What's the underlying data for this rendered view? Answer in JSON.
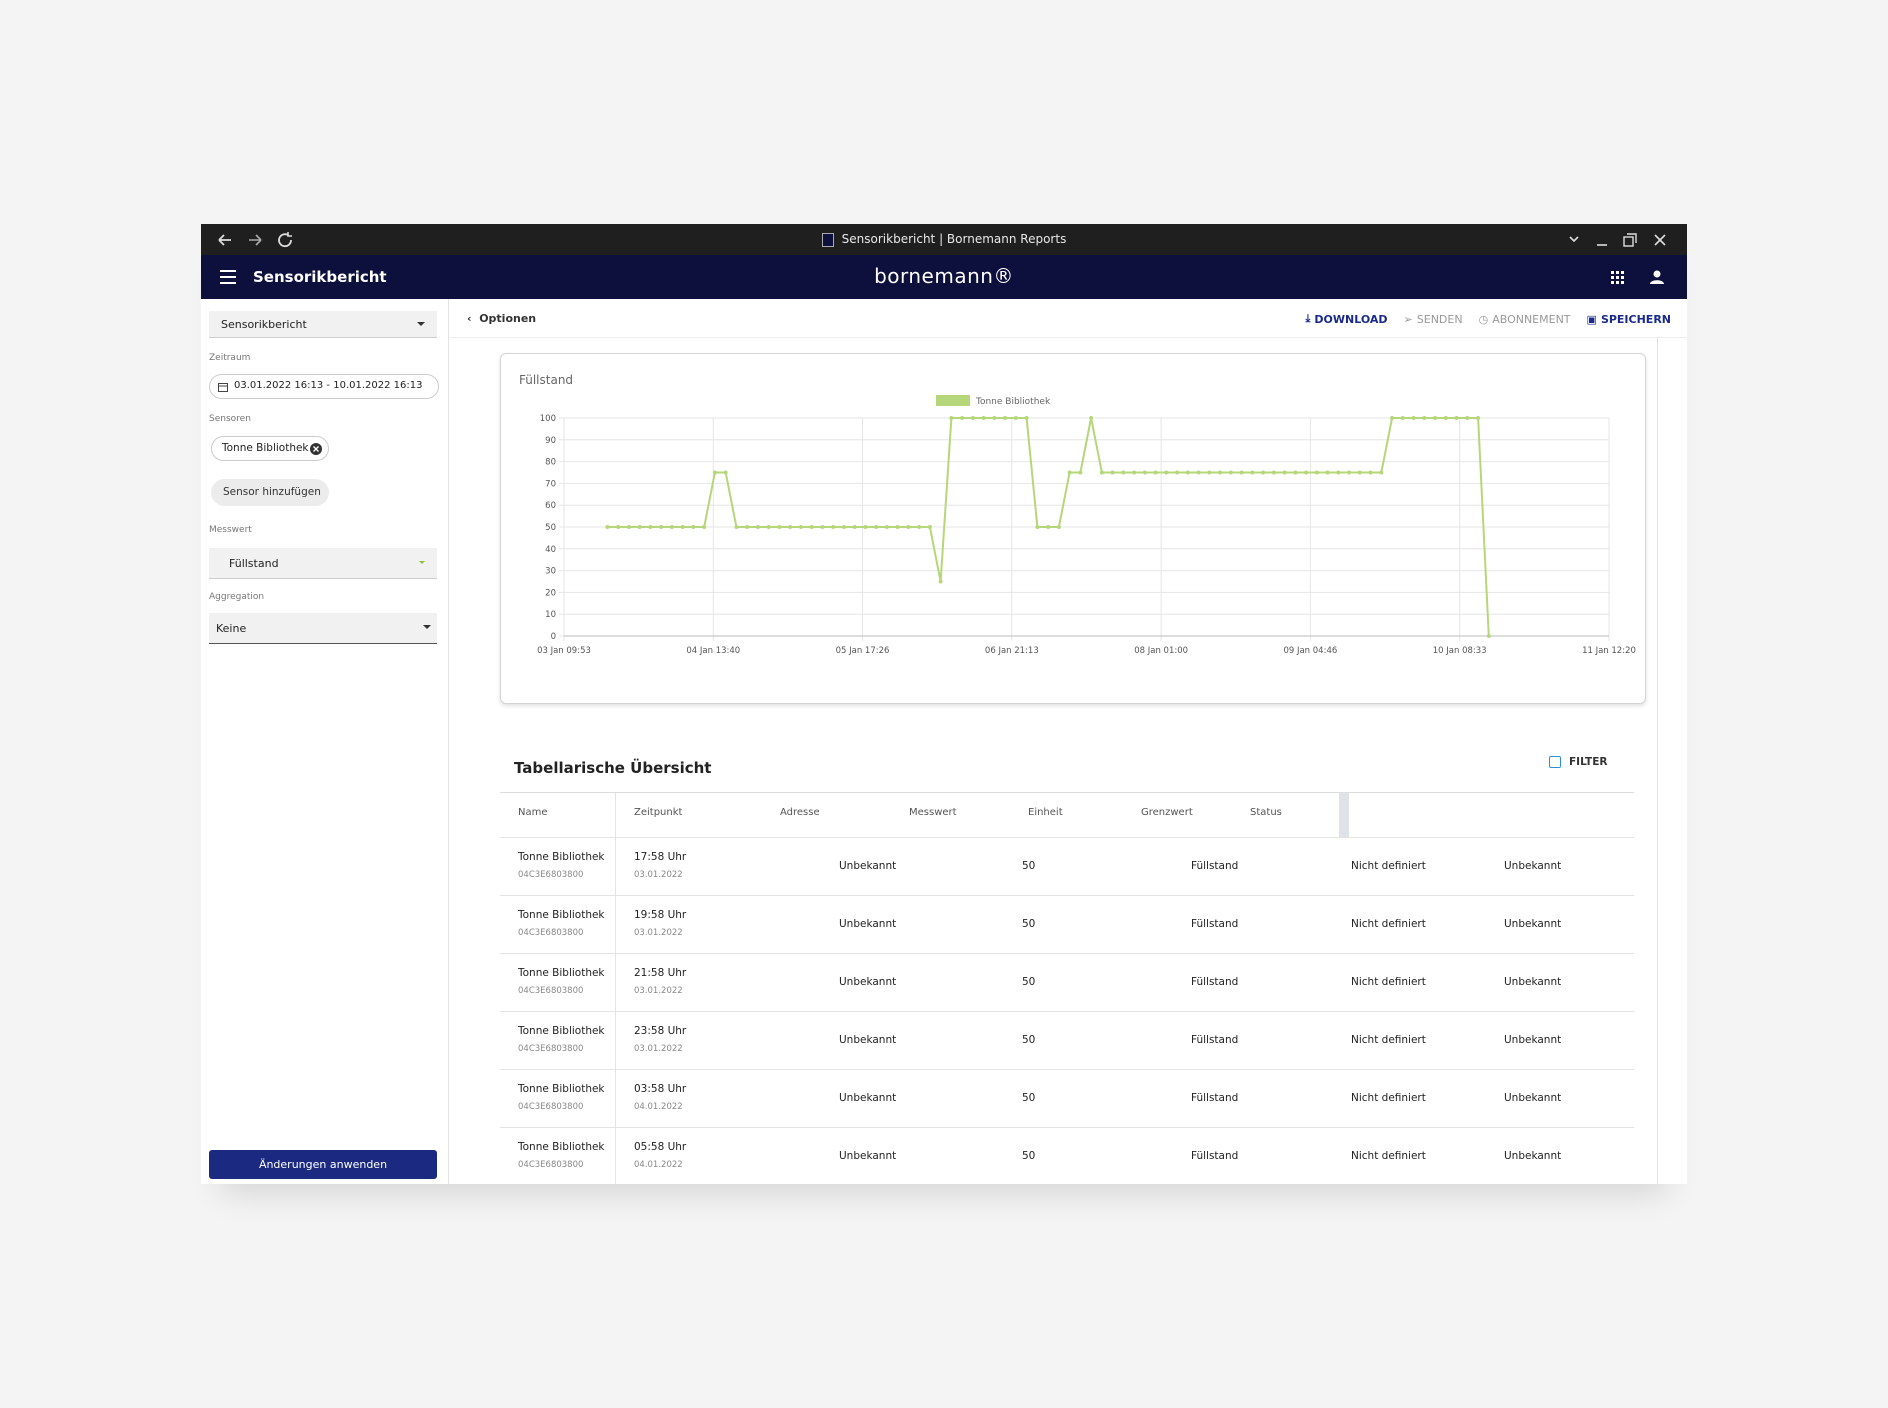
{
  "browser": {
    "tab_title": "Sensorikbericht | Bornemann Reports"
  },
  "app": {
    "title": "Sensorikbericht",
    "brand": "bornemann®"
  },
  "sidebar": {
    "report_select": "Sensorikbericht",
    "period_label": "Zeitraum",
    "period": "03.01.2022 16:13 - 10.01.2022 16:13",
    "sensors_label": "Sensoren",
    "sensor_chip": "Tonne Bibliothek",
    "add_sensor": "Sensor hinzufügen",
    "measure_label": "Messwert",
    "measure": "Füllstand",
    "aggregation_label": "Aggregation",
    "aggregation": "Keine",
    "apply": "Änderungen anwenden"
  },
  "toolbar": {
    "back": "Optionen",
    "actions": [
      "DOWNLOAD",
      "SENDEN",
      "ABONNEMENT",
      "SPEICHERN"
    ]
  },
  "chart_data": {
    "type": "line",
    "title": "Füllstand",
    "x": [
      "03 Jan 17:58",
      "03 Jan 19:58",
      "03 Jan 21:58",
      "03 Jan 23:58",
      "04 Jan 01:58",
      "04 Jan 03:58",
      "04 Jan 05:58",
      "04 Jan 07:58",
      "04 Jan 09:58",
      "04 Jan 11:58",
      "04 Jan 13:58",
      "04 Jan 15:58",
      "04 Jan 17:58",
      "04 Jan 19:58",
      "04 Jan 21:58",
      "04 Jan 23:58",
      "05 Jan 01:58",
      "05 Jan 03:58",
      "05 Jan 05:58",
      "05 Jan 07:58",
      "05 Jan 09:58",
      "05 Jan 11:58",
      "05 Jan 13:58",
      "05 Jan 15:58",
      "05 Jan 17:58",
      "05 Jan 19:58",
      "05 Jan 21:58",
      "05 Jan 23:58",
      "06 Jan 01:58",
      "06 Jan 03:58",
      "06 Jan 05:58",
      "06 Jan 07:58",
      "06 Jan 09:58",
      "06 Jan 11:58",
      "06 Jan 13:58",
      "06 Jan 15:58",
      "06 Jan 17:58",
      "06 Jan 19:58",
      "06 Jan 21:58",
      "06 Jan 23:58",
      "07 Jan 01:58",
      "07 Jan 03:58",
      "07 Jan 05:58",
      "07 Jan 07:58",
      "07 Jan 09:58",
      "07 Jan 11:58",
      "07 Jan 13:58",
      "07 Jan 15:58",
      "07 Jan 17:58",
      "07 Jan 19:58",
      "07 Jan 21:58",
      "07 Jan 23:58",
      "08 Jan 01:58",
      "08 Jan 03:58",
      "08 Jan 05:58",
      "08 Jan 07:58",
      "08 Jan 09:58",
      "08 Jan 11:58",
      "08 Jan 13:58",
      "08 Jan 15:58",
      "08 Jan 17:58",
      "08 Jan 19:58",
      "08 Jan 21:58",
      "08 Jan 23:58",
      "09 Jan 01:58",
      "09 Jan 03:58",
      "09 Jan 05:58",
      "09 Jan 07:58",
      "09 Jan 09:58",
      "09 Jan 11:58",
      "09 Jan 13:58",
      "09 Jan 15:58",
      "09 Jan 17:58",
      "09 Jan 19:58",
      "09 Jan 21:58",
      "09 Jan 23:58",
      "10 Jan 01:58",
      "10 Jan 03:58",
      "10 Jan 05:58",
      "10 Jan 07:58",
      "10 Jan 09:58",
      "10 Jan 11:58",
      "10 Jan 13:58"
    ],
    "series": [
      {
        "name": "Tonne Bibliothek",
        "color": "#b5d77a",
        "values": [
          50,
          50,
          50,
          50,
          50,
          50,
          50,
          50,
          50,
          50,
          75,
          75,
          50,
          50,
          50,
          50,
          50,
          50,
          50,
          50,
          50,
          50,
          50,
          50,
          50,
          50,
          50,
          50,
          50,
          50,
          50,
          25,
          100,
          100,
          100,
          100,
          100,
          100,
          100,
          100,
          50,
          50,
          50,
          75,
          75,
          100,
          75,
          75,
          75,
          75,
          75,
          75,
          75,
          75,
          75,
          75,
          75,
          75,
          75,
          75,
          75,
          75,
          75,
          75,
          75,
          75,
          75,
          75,
          75,
          75,
          75,
          75,
          75,
          100,
          100,
          100,
          100,
          100,
          100,
          100,
          100,
          100,
          0
        ]
      }
    ],
    "xlim": [
      "03 Jan 09:53",
      "11 Jan 12:20"
    ],
    "xticks": [
      "03 Jan 09:53",
      "04 Jan 13:40",
      "05 Jan 17:26",
      "06 Jan 21:13",
      "08 Jan 01:00",
      "09 Jan 04:46",
      "10 Jan 08:33",
      "11 Jan 12:20"
    ],
    "ylim": [
      0,
      100
    ],
    "yticks": [
      0,
      10,
      20,
      30,
      40,
      50,
      60,
      70,
      80,
      90,
      100
    ],
    "grid": true,
    "legend": "top"
  },
  "table": {
    "title": "Tabellarische Übersicht",
    "filter": "FILTER",
    "headers": [
      "Name",
      "Zeitpunkt",
      "Adresse",
      "Messwert",
      "Einheit",
      "Grenzwert",
      "Status"
    ],
    "rows": [
      {
        "name": "Tonne Bibliothek",
        "id": "04C3E6803800",
        "time": "17:58 Uhr",
        "date": "03.01.2022",
        "address": "Unbekannt",
        "value": "50",
        "unit": "Füllstand",
        "threshold": "Nicht definiert",
        "status": "Unbekannt"
      },
      {
        "name": "Tonne Bibliothek",
        "id": "04C3E6803800",
        "time": "19:58 Uhr",
        "date": "03.01.2022",
        "address": "Unbekannt",
        "value": "50",
        "unit": "Füllstand",
        "threshold": "Nicht definiert",
        "status": "Unbekannt"
      },
      {
        "name": "Tonne Bibliothek",
        "id": "04C3E6803800",
        "time": "21:58 Uhr",
        "date": "03.01.2022",
        "address": "Unbekannt",
        "value": "50",
        "unit": "Füllstand",
        "threshold": "Nicht definiert",
        "status": "Unbekannt"
      },
      {
        "name": "Tonne Bibliothek",
        "id": "04C3E6803800",
        "time": "23:58 Uhr",
        "date": "03.01.2022",
        "address": "Unbekannt",
        "value": "50",
        "unit": "Füllstand",
        "threshold": "Nicht definiert",
        "status": "Unbekannt"
      },
      {
        "name": "Tonne Bibliothek",
        "id": "04C3E6803800",
        "time": "03:58 Uhr",
        "date": "04.01.2022",
        "address": "Unbekannt",
        "value": "50",
        "unit": "Füllstand",
        "threshold": "Nicht definiert",
        "status": "Unbekannt"
      },
      {
        "name": "Tonne Bibliothek",
        "id": "04C3E6803800",
        "time": "05:58 Uhr",
        "date": "04.01.2022",
        "address": "Unbekannt",
        "value": "50",
        "unit": "Füllstand",
        "threshold": "Nicht definiert",
        "status": "Unbekannt"
      }
    ]
  }
}
